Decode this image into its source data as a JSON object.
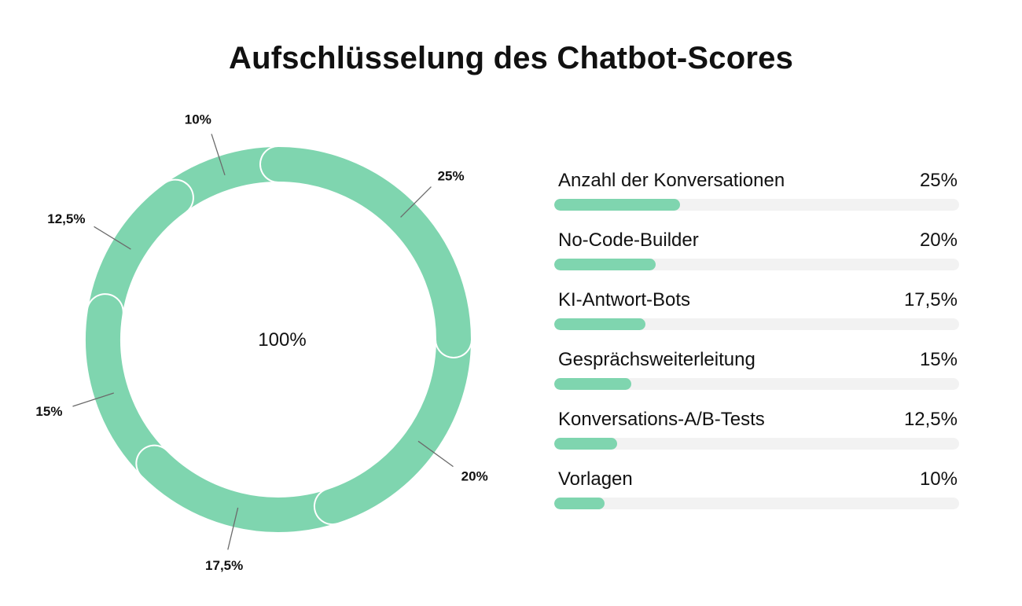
{
  "chart_data": {
    "type": "pie",
    "title": "Aufschlüsselung des Chatbot-Scores",
    "center_label": "100%",
    "color": "#7fd5af",
    "track_color": "#f2f2f2",
    "categories": [
      "Anzahl der Konversationen",
      "No-Code-Builder",
      "KI-Antwort-Bots",
      "Gesprächsweiterleitung",
      "Konversations-A/B-Tests",
      "Vorlagen"
    ],
    "values": [
      25,
      20,
      17.5,
      15,
      12.5,
      10
    ],
    "value_labels": [
      "25%",
      "20%",
      "17,5%",
      "15%",
      "12,5%",
      "10%"
    ],
    "legend": [
      {
        "label": "Anzahl der Konversationen",
        "value": "25%"
      },
      {
        "label": "No-Code-Builder",
        "value": "20%"
      },
      {
        "label": "KI-Antwort-Bots",
        "value": "17,5%"
      },
      {
        "label": "Gesprächsweiterleitung",
        "value": "15%"
      },
      {
        "label": "Konversations-A/B-Tests",
        "value": "12,5%"
      },
      {
        "label": "Vorlagen",
        "value": "10%"
      }
    ],
    "legend_bar_fractions": [
      0.31,
      0.25,
      0.225,
      0.19,
      0.155,
      0.125
    ]
  }
}
